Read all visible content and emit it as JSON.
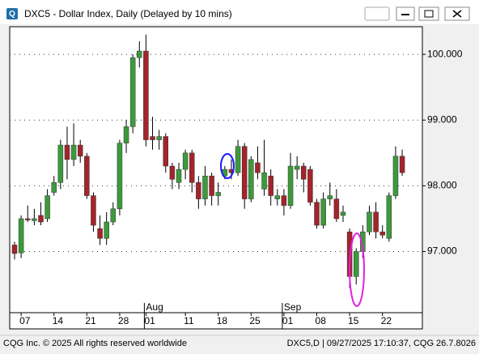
{
  "window": {
    "title": "DXC5 - Dollar Index, Daily (Delayed by 10 mins)"
  },
  "chart_data": {
    "type": "candlestick",
    "categories": [
      null,
      "07",
      null,
      null,
      null,
      null,
      "14",
      null,
      null,
      null,
      null,
      "21",
      null,
      null,
      null,
      null,
      "28",
      null,
      null,
      null,
      "01",
      null,
      null,
      null,
      null,
      null,
      "11",
      null,
      null,
      null,
      null,
      "18",
      null,
      null,
      null,
      null,
      "25",
      null,
      null,
      null,
      null,
      "01",
      null,
      null,
      null,
      null,
      "08",
      null,
      null,
      null,
      null,
      "15",
      null,
      null,
      null,
      null,
      "22",
      null,
      null,
      null
    ],
    "month_labels": [
      null,
      null,
      null,
      null,
      null,
      null,
      null,
      null,
      null,
      null,
      null,
      null,
      null,
      null,
      null,
      null,
      null,
      null,
      null,
      null,
      "Aug",
      null,
      null,
      null,
      null,
      null,
      null,
      null,
      null,
      null,
      null,
      null,
      null,
      null,
      null,
      null,
      null,
      null,
      null,
      null,
      null,
      "Sep",
      null,
      null,
      null,
      null,
      null,
      null,
      null,
      null,
      null,
      null,
      null,
      null,
      null,
      null,
      null,
      null,
      null,
      null
    ],
    "open": [
      97.1,
      96.98,
      97.5,
      97.47,
      97.55,
      97.5,
      97.9,
      98.05,
      98.62,
      98.4,
      98.62,
      98.45,
      97.85,
      97.35,
      97.2,
      97.45,
      97.65,
      98.65,
      98.9,
      99.95,
      100.05,
      98.75,
      98.7,
      98.75,
      98.3,
      98.05,
      98.25,
      98.5,
      98.05,
      97.8,
      98.15,
      97.85,
      98.15,
      98.25,
      98.2,
      98.6,
      97.8,
      98.35,
      97.95,
      98.15,
      97.8,
      97.85,
      97.7,
      98.25,
      98.3,
      98.25,
      97.75,
      97.4,
      97.8,
      97.8,
      97.55,
      97.3,
      96.62,
      97.0,
      97.3,
      97.6,
      97.3,
      97.2,
      97.85,
      98.45
    ],
    "high": [
      97.15,
      97.55,
      97.7,
      97.65,
      97.75,
      97.95,
      98.15,
      98.7,
      98.9,
      98.95,
      98.7,
      98.5,
      97.9,
      97.55,
      97.6,
      97.75,
      98.7,
      99.0,
      100.0,
      100.2,
      100.3,
      99.05,
      98.85,
      98.8,
      98.35,
      98.35,
      98.55,
      98.55,
      98.15,
      98.3,
      98.2,
      98.05,
      98.3,
      98.4,
      98.7,
      98.65,
      98.45,
      98.6,
      98.7,
      98.25,
      97.95,
      97.95,
      98.5,
      98.45,
      98.35,
      98.3,
      97.8,
      97.9,
      98.05,
      97.95,
      97.7,
      97.35,
      97.05,
      97.4,
      97.7,
      97.75,
      97.4,
      97.9,
      98.6,
      98.55
    ],
    "low": [
      96.88,
      96.9,
      97.45,
      97.4,
      97.4,
      97.45,
      97.85,
      97.95,
      98.1,
      98.3,
      98.35,
      97.8,
      97.3,
      97.1,
      97.1,
      97.4,
      97.55,
      98.5,
      98.8,
      99.8,
      98.6,
      98.55,
      98.55,
      98.2,
      97.95,
      97.95,
      98.1,
      97.9,
      97.65,
      97.7,
      97.7,
      97.7,
      98.1,
      98.1,
      98.15,
      97.65,
      97.75,
      98.1,
      97.85,
      97.7,
      97.7,
      97.55,
      97.65,
      98.1,
      97.9,
      97.7,
      97.35,
      97.35,
      97.7,
      97.45,
      97.45,
      96.45,
      96.5,
      96.9,
      97.25,
      97.2,
      97.2,
      97.15,
      97.8,
      98.15
    ],
    "close": [
      96.97,
      97.5,
      97.48,
      97.5,
      97.45,
      97.85,
      98.05,
      98.62,
      98.4,
      98.62,
      98.45,
      97.85,
      97.4,
      97.2,
      97.45,
      97.65,
      98.65,
      98.9,
      99.95,
      100.05,
      98.7,
      98.7,
      98.75,
      98.3,
      98.1,
      98.25,
      98.5,
      98.05,
      97.8,
      98.15,
      97.85,
      97.9,
      98.25,
      98.2,
      98.6,
      97.8,
      98.4,
      98.2,
      98.2,
      97.85,
      97.85,
      97.7,
      98.3,
      98.3,
      98.1,
      97.75,
      97.4,
      97.8,
      97.85,
      97.5,
      97.6,
      96.62,
      97.0,
      97.3,
      97.6,
      97.3,
      97.25,
      97.85,
      98.45,
      98.2
    ],
    "up_color": "#3c9a3c",
    "down_color": "#a3242a",
    "ylim": [
      96.07,
      100.42
    ],
    "yticks": [
      {
        "value": 97,
        "label": "97.000"
      },
      {
        "value": 98,
        "label": "98.000"
      },
      {
        "value": 99,
        "label": "99.000"
      },
      {
        "value": 100,
        "label": "100.000"
      }
    ],
    "grid": true
  },
  "footer": {
    "left": "CQG Inc. © 2025 All rights reserved worldwide",
    "right": "DXC5,D | 09/27/2025 17:10:37, CQG 26.7.8026"
  }
}
